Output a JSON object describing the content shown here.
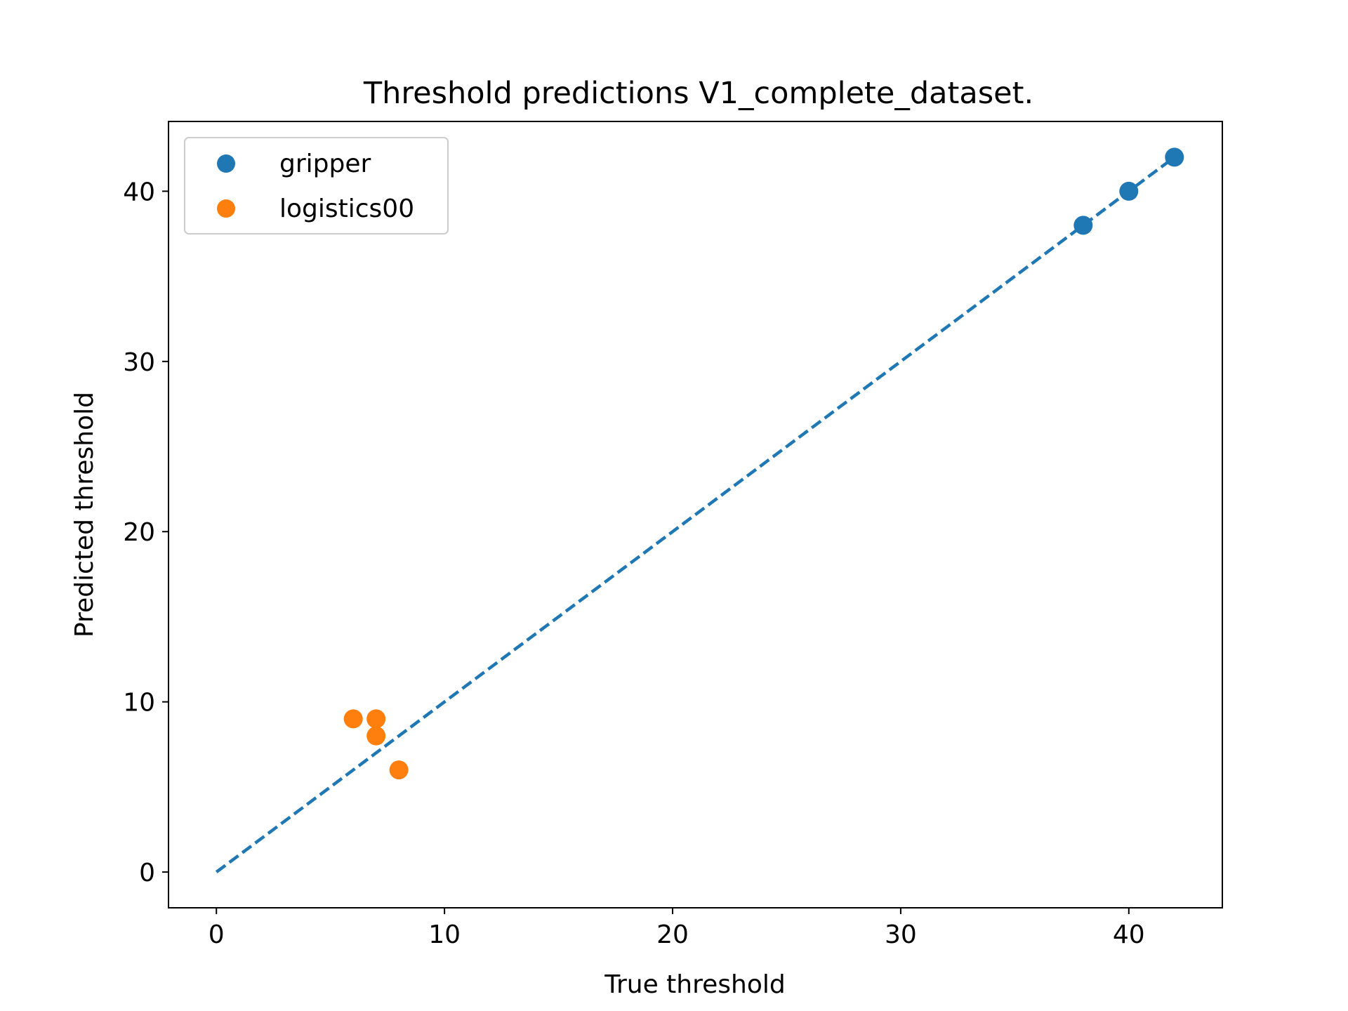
{
  "chart_data": {
    "type": "scatter",
    "title": "Threshold predictions V1_complete_dataset.",
    "xlabel": "True threshold",
    "ylabel": "Predicted threshold",
    "xlim": [
      -2.1,
      44.1
    ],
    "ylim": [
      -2.1,
      44.1
    ],
    "x_ticks": [
      0,
      10,
      20,
      30,
      40
    ],
    "y_ticks": [
      0,
      10,
      20,
      30,
      40
    ],
    "grid": false,
    "legend_position": "top-left",
    "reference_line": {
      "style": "dashed",
      "color": "#1f77b4",
      "x": [
        0,
        42
      ],
      "y": [
        0,
        42
      ]
    },
    "series": [
      {
        "name": "gripper",
        "color": "#1f77b4",
        "x": [
          38,
          40,
          42
        ],
        "y": [
          38,
          40,
          42
        ]
      },
      {
        "name": "logistics00",
        "color": "#ff7f0e",
        "x": [
          6,
          7,
          7,
          8
        ],
        "y": [
          9,
          9,
          8,
          6
        ]
      }
    ]
  }
}
